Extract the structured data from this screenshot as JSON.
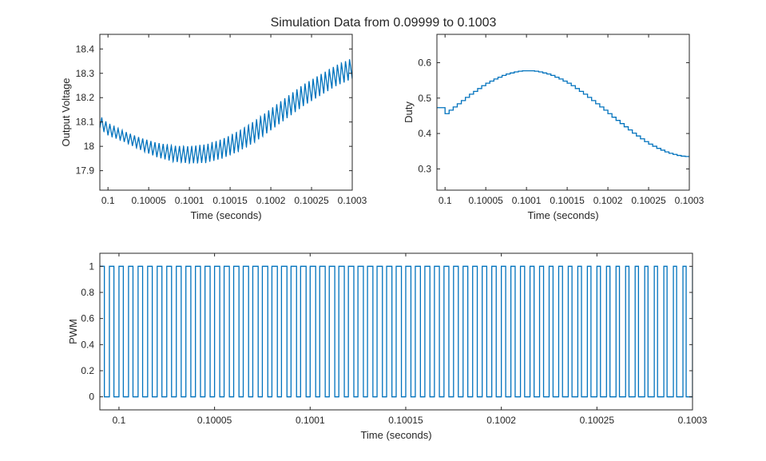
{
  "figure": {
    "title": "Simulation Data from 0.09999 to 0.1003",
    "line_color": "#0072BD",
    "axis_color": "#262626"
  },
  "chart_data": [
    {
      "type": "line",
      "name": "output-voltage",
      "title": "",
      "xlabel": "Time (seconds)",
      "ylabel": "Output Voltage",
      "xlim": [
        0.09999,
        0.1003
      ],
      "ylim": [
        17.82,
        18.46
      ],
      "xticks": [
        0.1,
        0.10005,
        0.1001,
        0.10015,
        0.1002,
        0.10025,
        0.1003
      ],
      "xtick_labels": [
        "0.1",
        "0.10005",
        "0.1001",
        "0.10015",
        "0.1002",
        "0.10025",
        "0.1003"
      ],
      "yticks": [
        17.9,
        18,
        18.1,
        18.2,
        18.3,
        18.4
      ],
      "ytick_labels": [
        "17.9",
        "18",
        "18.1",
        "18.2",
        "18.3",
        "18.4"
      ],
      "grid": false,
      "switching_period": 5e-06,
      "mean_t": [
        0.09999,
        0.1,
        0.10002,
        0.10004,
        0.10006,
        0.10008,
        0.1001,
        0.10012,
        0.10014,
        0.10016,
        0.10018,
        0.1002,
        0.10022,
        0.10024,
        0.10026,
        0.10028,
        0.1003
      ],
      "mean_v": [
        18.1,
        18.07,
        18.04,
        18.01,
        17.985,
        17.97,
        17.965,
        17.97,
        17.99,
        18.02,
        18.06,
        18.11,
        18.16,
        18.21,
        18.25,
        18.29,
        18.32
      ],
      "ripple_half_amplitude": [
        0.025,
        0.025,
        0.022,
        0.025,
        0.03,
        0.033,
        0.035,
        0.038,
        0.04,
        0.042,
        0.044,
        0.045,
        0.045,
        0.045,
        0.044,
        0.043,
        0.043
      ]
    },
    {
      "type": "line",
      "name": "duty",
      "title": "",
      "xlabel": "Time (seconds)",
      "ylabel": "Duty",
      "xlim": [
        0.09999,
        0.1003
      ],
      "ylim": [
        0.24,
        0.68
      ],
      "xticks": [
        0.1,
        0.10005,
        0.1001,
        0.10015,
        0.1002,
        0.10025,
        0.1003
      ],
      "xtick_labels": [
        "0.1",
        "0.10005",
        "0.1001",
        "0.10015",
        "0.1002",
        "0.10025",
        "0.1003"
      ],
      "yticks": [
        0.3,
        0.4,
        0.5,
        0.6
      ],
      "ytick_labels": [
        "0.3",
        "0.4",
        "0.5",
        "0.6"
      ],
      "grid": false,
      "step": true,
      "initial_value": 0.473,
      "step_start": 0.1,
      "step_period": 5e-06,
      "values": [
        0.456,
        0.466,
        0.475,
        0.484,
        0.493,
        0.502,
        0.511,
        0.519,
        0.527,
        0.535,
        0.542,
        0.548,
        0.554,
        0.559,
        0.564,
        0.568,
        0.571,
        0.574,
        0.576,
        0.577,
        0.577,
        0.577,
        0.576,
        0.574,
        0.571,
        0.568,
        0.564,
        0.559,
        0.554,
        0.548,
        0.542,
        0.535,
        0.527,
        0.519,
        0.511,
        0.502,
        0.493,
        0.484,
        0.475,
        0.466,
        0.456,
        0.446,
        0.437,
        0.428,
        0.419,
        0.41,
        0.401,
        0.393,
        0.385,
        0.377,
        0.37,
        0.364,
        0.358,
        0.353,
        0.348,
        0.344,
        0.341,
        0.338,
        0.336,
        0.335,
        0.335
      ]
    },
    {
      "type": "line",
      "name": "pwm",
      "title": "",
      "xlabel": "Time (seconds)",
      "ylabel": "PWM",
      "xlim": [
        0.09999,
        0.1003
      ],
      "ylim": [
        -0.1,
        1.1
      ],
      "xticks": [
        0.1,
        0.10005,
        0.1001,
        0.10015,
        0.1002,
        0.10025,
        0.1003
      ],
      "xtick_labels": [
        "0.1",
        "0.10005",
        "0.1001",
        "0.10015",
        "0.1002",
        "0.10025",
        "0.1003"
      ],
      "yticks": [
        0,
        0.2,
        0.4,
        0.6,
        0.8,
        1
      ],
      "ytick_labels": [
        "0",
        "0.2",
        "0.4",
        "0.6",
        "0.8",
        "1"
      ],
      "grid": false,
      "period": 5e-06,
      "levels": [
        0,
        1
      ],
      "duty_source": "duty"
    }
  ]
}
